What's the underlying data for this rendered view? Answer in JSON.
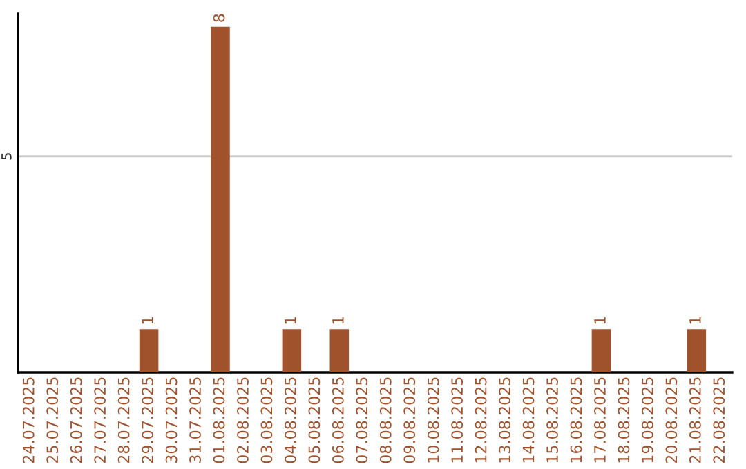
{
  "chart_data": {
    "type": "bar",
    "categories": [
      "24.07.2025",
      "25.07.2025",
      "26.07.2025",
      "27.07.2025",
      "28.07.2025",
      "29.07.2025",
      "30.07.2025",
      "31.07.2025",
      "01.08.2025",
      "02.08.2025",
      "03.08.2025",
      "04.08.2025",
      "05.08.2025",
      "06.08.2025",
      "07.08.2025",
      "08.08.2025",
      "09.08.2025",
      "10.08.2025",
      "11.08.2025",
      "12.08.2025",
      "13.08.2025",
      "14.08.2025",
      "15.08.2025",
      "16.08.2025",
      "17.08.2025",
      "18.08.2025",
      "19.08.2025",
      "20.08.2025",
      "21.08.2025",
      "22.08.2025"
    ],
    "values": [
      0,
      0,
      0,
      0,
      0,
      1,
      0,
      0,
      8,
      0,
      0,
      1,
      0,
      1,
      0,
      0,
      0,
      0,
      0,
      0,
      0,
      0,
      0,
      0,
      1,
      0,
      0,
      0,
      1,
      0
    ],
    "value_labels": [
      null,
      null,
      null,
      null,
      null,
      "1",
      null,
      null,
      "8",
      null,
      null,
      "1",
      null,
      "1",
      null,
      null,
      null,
      null,
      null,
      null,
      null,
      null,
      null,
      null,
      "1",
      null,
      null,
      null,
      "1",
      null
    ],
    "color": "#a0522d",
    "ylim": [
      0,
      8.3
    ],
    "yticks": [
      5
    ],
    "grid": "y"
  }
}
